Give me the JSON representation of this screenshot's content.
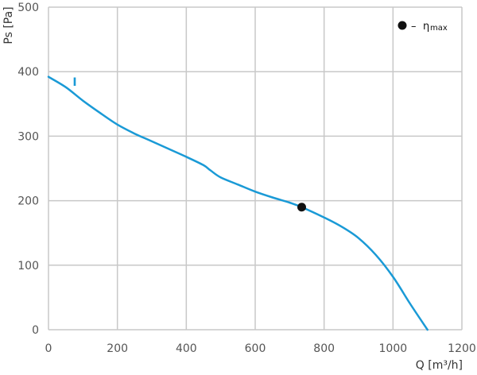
{
  "chart_data": {
    "type": "line",
    "xlabel": "Q [m³/h]",
    "ylabel": "Ps [Pa]",
    "xlim": [
      0,
      1200
    ],
    "ylim": [
      0,
      500
    ],
    "xticks": [
      0,
      200,
      400,
      600,
      800,
      1000,
      1200
    ],
    "yticks": [
      0,
      100,
      200,
      300,
      400,
      500
    ],
    "grid": true,
    "series": [
      {
        "name": "I",
        "color": "#1a9ad6",
        "x": [
          0,
          50,
          100,
          150,
          200,
          250,
          300,
          350,
          400,
          450,
          470,
          500,
          550,
          600,
          650,
          700,
          735,
          800,
          850,
          900,
          950,
          1000,
          1050,
          1100
        ],
        "y": [
          392,
          376,
          355,
          336,
          318,
          304,
          292,
          280,
          268,
          255,
          247,
          236,
          225,
          214,
          205,
          197,
          190,
          174,
          160,
          142,
          116,
          82,
          40,
          0
        ]
      }
    ],
    "markers": [
      {
        "label": "ηmax",
        "x": 735,
        "y": 190,
        "color": "#111111"
      }
    ],
    "legend": {
      "position": "top-right",
      "dash": "–",
      "symbol": "η",
      "subscript": "max"
    }
  }
}
